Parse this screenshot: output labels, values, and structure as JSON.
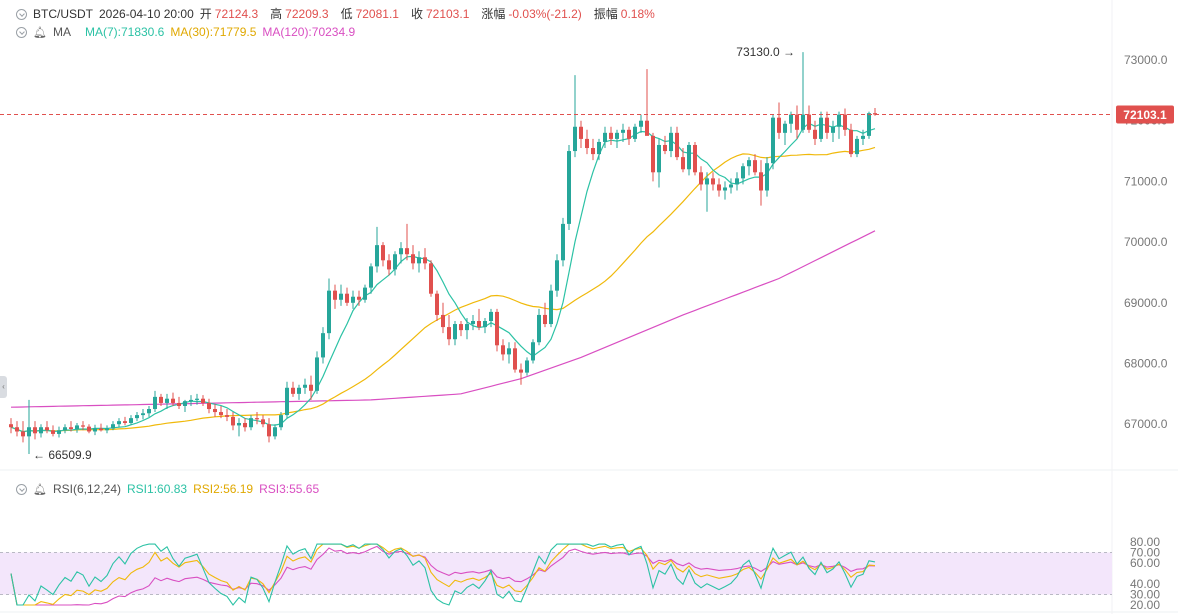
{
  "header": {
    "symbol": "BTC/USDT",
    "datetime": "2026-04-10 20:00",
    "open_label": "开",
    "open": "72124.3",
    "high_label": "高",
    "high": "72209.3",
    "low_label": "低",
    "low": "72081.1",
    "close_label": "收",
    "close": "72103.1",
    "change_label": "涨幅",
    "change": "-0.03%(-21.2)",
    "amp_label": "振幅",
    "amp": "0.18%"
  },
  "ma_legend": {
    "label": "MA",
    "ma7": "MA(7):71830.6",
    "ma30": "MA(30):71779.5",
    "ma120": "MA(120):70234.9"
  },
  "rsi_legend": {
    "label": "RSI(6,12,24)",
    "rsi1": "RSI1:60.83",
    "rsi2": "RSI2:56.19",
    "rsi3": "RSI3:55.65"
  },
  "colors": {
    "up": "#26a69a",
    "down": "#e0504e",
    "ma7": "#2cc2a5",
    "ma30": "#f0b90b",
    "ma120": "#d94fc2",
    "rsi1": "#2cc2a5",
    "rsi2": "#f0b90b",
    "rsi3": "#d94fc2",
    "rsi_band": "#f3e6fb",
    "price_tag": "#e0504e"
  },
  "chart_data": {
    "type": "candlestick",
    "symbol": "BTC/USDT",
    "interval": "hourly",
    "y_axis": {
      "ticks": [
        67000,
        68000,
        69000,
        70000,
        71000,
        72000,
        73000
      ],
      "tick_labels": [
        "67000.0",
        "68000.0",
        "69000.0",
        "70000.0",
        "71000.0",
        "72000.0",
        "73000.0"
      ]
    },
    "current_price": 72103.1,
    "current_price_label": "72103.1",
    "annotations": {
      "max_value": 73130.0,
      "max_label": "73130.0",
      "min_value": 66509.9,
      "min_label": "66509.9"
    },
    "candles": [
      [
        67000,
        67100,
        66850,
        66950
      ],
      [
        66950,
        67050,
        66800,
        66880
      ],
      [
        66880,
        67050,
        66700,
        66800
      ],
      [
        66800,
        67400,
        66509.9,
        66950
      ],
      [
        66950,
        67050,
        66750,
        66850
      ],
      [
        66850,
        67000,
        66780,
        66950
      ],
      [
        66950,
        67050,
        66850,
        66900
      ],
      [
        66900,
        66980,
        66800,
        66840
      ],
      [
        66840,
        66960,
        66780,
        66900
      ],
      [
        66900,
        67000,
        66850,
        66950
      ],
      [
        66950,
        67050,
        66880,
        66920
      ],
      [
        66920,
        67020,
        66860,
        66980
      ],
      [
        66980,
        67050,
        66900,
        66960
      ],
      [
        66960,
        67000,
        66850,
        66880
      ],
      [
        66880,
        66990,
        66820,
        66930
      ],
      [
        66930,
        67010,
        66880,
        66900
      ],
      [
        66900,
        66980,
        66850,
        66930
      ],
      [
        66930,
        67050,
        66900,
        67000
      ],
      [
        67000,
        67100,
        66950,
        67050
      ],
      [
        67050,
        67120,
        66980,
        67020
      ],
      [
        67020,
        67150,
        66990,
        67100
      ],
      [
        67100,
        67200,
        67050,
        67150
      ],
      [
        67150,
        67250,
        67080,
        67180
      ],
      [
        67180,
        67300,
        67120,
        67250
      ],
      [
        67250,
        67550,
        67200,
        67450
      ],
      [
        67450,
        67500,
        67300,
        67350
      ],
      [
        67350,
        67500,
        67250,
        67420
      ],
      [
        67420,
        67520,
        67300,
        67350
      ],
      [
        67350,
        67450,
        67250,
        67300
      ],
      [
        67300,
        67400,
        67200,
        67380
      ],
      [
        67380,
        67480,
        67300,
        67400
      ],
      [
        67400,
        67500,
        67320,
        67420
      ],
      [
        67420,
        67480,
        67300,
        67350
      ],
      [
        67350,
        67420,
        67180,
        67250
      ],
      [
        67250,
        67330,
        67120,
        67200
      ],
      [
        67200,
        67300,
        67100,
        67150
      ],
      [
        67150,
        67250,
        67050,
        67120
      ],
      [
        67120,
        67200,
        66900,
        66980
      ],
      [
        66980,
        67100,
        66800,
        67020
      ],
      [
        67020,
        67100,
        66880,
        66950
      ],
      [
        66950,
        67150,
        66900,
        67100
      ],
      [
        67100,
        67200,
        67000,
        67080
      ],
      [
        67080,
        67150,
        66950,
        67000
      ],
      [
        67000,
        67100,
        66700,
        66800
      ],
      [
        66800,
        67000,
        66750,
        66950
      ],
      [
        66950,
        67200,
        66900,
        67150
      ],
      [
        67150,
        67700,
        67100,
        67600
      ],
      [
        67600,
        67700,
        67450,
        67500
      ],
      [
        67500,
        67650,
        67400,
        67600
      ],
      [
        67600,
        67750,
        67500,
        67650
      ],
      [
        67650,
        67800,
        67400,
        67550
      ],
      [
        67550,
        68200,
        67500,
        68100
      ],
      [
        68100,
        68600,
        68000,
        68500
      ],
      [
        68500,
        69400,
        68400,
        69200
      ],
      [
        69200,
        69300,
        68900,
        69050
      ],
      [
        69050,
        69300,
        68950,
        69150
      ],
      [
        69150,
        69250,
        68950,
        69000
      ],
      [
        69000,
        69200,
        68900,
        69100
      ],
      [
        69100,
        69200,
        68950,
        69050
      ],
      [
        69050,
        69300,
        69000,
        69250
      ],
      [
        69250,
        69650,
        69150,
        69600
      ],
      [
        69600,
        70250,
        69500,
        69950
      ],
      [
        69950,
        70000,
        69600,
        69700
      ],
      [
        69700,
        69800,
        69450,
        69550
      ],
      [
        69550,
        69850,
        69450,
        69800
      ],
      [
        69800,
        70000,
        69650,
        69900
      ],
      [
        69900,
        70300,
        69700,
        69800
      ],
      [
        69800,
        69950,
        69550,
        69650
      ],
      [
        69650,
        69850,
        69500,
        69750
      ],
      [
        69750,
        69900,
        69550,
        69650
      ],
      [
        69650,
        69700,
        69100,
        69150
      ],
      [
        69150,
        69200,
        68700,
        68800
      ],
      [
        68800,
        69000,
        68500,
        68600
      ],
      [
        68600,
        68800,
        68300,
        68400
      ],
      [
        68400,
        68700,
        68300,
        68650
      ],
      [
        68650,
        68700,
        68450,
        68550
      ],
      [
        68550,
        68750,
        68400,
        68650
      ],
      [
        68650,
        68800,
        68550,
        68700
      ],
      [
        68700,
        68900,
        68550,
        68600
      ],
      [
        68600,
        68750,
        68500,
        68700
      ],
      [
        68700,
        68900,
        68600,
        68850
      ],
      [
        68850,
        68900,
        68200,
        68300
      ],
      [
        68300,
        68400,
        68050,
        68150
      ],
      [
        68150,
        68350,
        68000,
        68250
      ],
      [
        68250,
        68350,
        67850,
        67900
      ],
      [
        67900,
        68000,
        67650,
        67850
      ],
      [
        67850,
        68100,
        67800,
        68050
      ],
      [
        68050,
        68400,
        68000,
        68350
      ],
      [
        68350,
        68900,
        68300,
        68800
      ],
      [
        68800,
        69000,
        68600,
        68650
      ],
      [
        68650,
        69300,
        68600,
        69200
      ],
      [
        69200,
        69800,
        69100,
        69700
      ],
      [
        69700,
        70400,
        69600,
        70300
      ],
      [
        70300,
        71600,
        70200,
        71500
      ],
      [
        71500,
        72750,
        71400,
        71900
      ],
      [
        71900,
        72000,
        71550,
        71700
      ],
      [
        71700,
        71850,
        71450,
        71550
      ],
      [
        71550,
        71700,
        71350,
        71450
      ],
      [
        71450,
        71700,
        71350,
        71650
      ],
      [
        71650,
        71900,
        71550,
        71800
      ],
      [
        71800,
        71900,
        71600,
        71700
      ],
      [
        71700,
        71850,
        71550,
        71800
      ],
      [
        71800,
        71950,
        71650,
        71850
      ],
      [
        71850,
        71900,
        71600,
        71700
      ],
      [
        71700,
        71950,
        71650,
        71900
      ],
      [
        71900,
        72100,
        71800,
        72000
      ],
      [
        72000,
        72850,
        71800,
        71750
      ],
      [
        71750,
        71800,
        71000,
        71150
      ],
      [
        71150,
        71700,
        70900,
        71600
      ],
      [
        71600,
        71750,
        71450,
        71500
      ],
      [
        71500,
        71900,
        71400,
        71800
      ],
      [
        71800,
        71900,
        71350,
        71400
      ],
      [
        71400,
        71550,
        71150,
        71200
      ],
      [
        71200,
        71650,
        71100,
        71600
      ],
      [
        71600,
        71650,
        71100,
        71150
      ],
      [
        71150,
        71250,
        70850,
        70950
      ],
      [
        70950,
        71150,
        70500,
        71050
      ],
      [
        71050,
        71150,
        70850,
        70950
      ],
      [
        70950,
        71050,
        70750,
        70850
      ],
      [
        70850,
        71000,
        70700,
        70900
      ],
      [
        70900,
        71050,
        70800,
        70950
      ],
      [
        70950,
        71150,
        70850,
        71050
      ],
      [
        71050,
        71300,
        70950,
        71250
      ],
      [
        71250,
        71400,
        71100,
        71350
      ],
      [
        71350,
        71450,
        71100,
        71150
      ],
      [
        71150,
        71350,
        70600,
        70850
      ],
      [
        70850,
        71400,
        70750,
        71300
      ],
      [
        71300,
        72100,
        71200,
        72050
      ],
      [
        72050,
        72300,
        71700,
        71800
      ],
      [
        71800,
        72000,
        71600,
        71950
      ],
      [
        71950,
        72150,
        71800,
        72100
      ],
      [
        72100,
        72250,
        71700,
        71850
      ],
      [
        71850,
        73130,
        71800,
        72100
      ],
      [
        72100,
        72250,
        71800,
        71850
      ],
      [
        71850,
        72000,
        71600,
        71700
      ],
      [
        71700,
        72150,
        71650,
        72050
      ],
      [
        72050,
        72150,
        71700,
        71800
      ],
      [
        71800,
        72000,
        71650,
        71900
      ],
      [
        71900,
        72150,
        71700,
        72100
      ],
      [
        72100,
        72200,
        71750,
        71850
      ],
      [
        71850,
        71950,
        71400,
        71450
      ],
      [
        71450,
        71750,
        71400,
        71700
      ],
      [
        71700,
        71850,
        71600,
        71750
      ],
      [
        71750,
        72150,
        71700,
        72124.3
      ],
      [
        72124.3,
        72209.3,
        72081.1,
        72103.1
      ]
    ],
    "ma120": [
      [
        0,
        67280
      ],
      [
        60,
        67400
      ],
      [
        75,
        67500
      ],
      [
        85,
        67750
      ],
      [
        95,
        68100
      ],
      [
        112,
        68800
      ],
      [
        128,
        69400
      ],
      [
        145,
        70234.9
      ]
    ],
    "rsi": {
      "range": [
        20,
        80
      ],
      "ticks": [
        20,
        30,
        40,
        60,
        70,
        80
      ],
      "tick_labels": [
        "20.00",
        "30.00",
        "40.00",
        "60.00",
        "70.00",
        "80.00"
      ],
      "band": [
        30,
        70
      ]
    }
  }
}
